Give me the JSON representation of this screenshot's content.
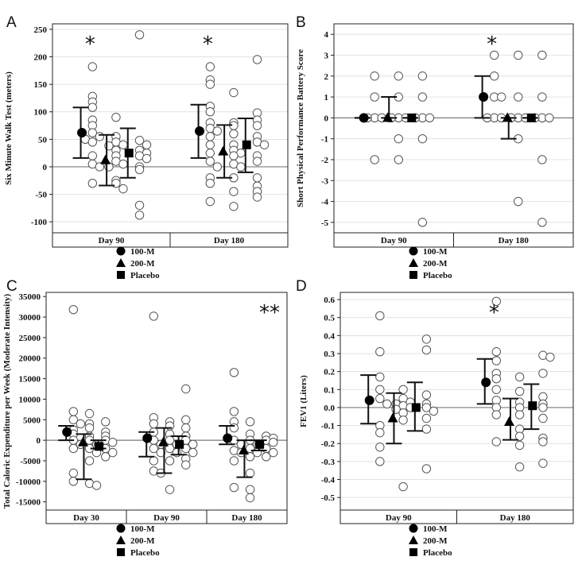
{
  "legend": {
    "entries": [
      {
        "label": "100-M",
        "marker": "circle"
      },
      {
        "label": "200-M",
        "marker": "triangle"
      },
      {
        "label": "Placebo",
        "marker": "square"
      }
    ]
  },
  "chart_data": [
    {
      "panel": "A",
      "type": "scatter",
      "ylabel": "Six Minute Walk Test (meters)",
      "ylim": [
        -120,
        260
      ],
      "yticks": [
        -100,
        -50,
        0,
        50,
        100,
        150,
        200,
        250
      ],
      "categories": [
        "Day 90",
        "Day 180"
      ],
      "grid": true,
      "annotations": [
        {
          "category": "Day 90",
          "text": "*"
        },
        {
          "category": "Day 180",
          "text": "*"
        }
      ],
      "groups": [
        {
          "category": "Day 90",
          "series": [
            {
              "group": "100-M",
              "mean": 62,
              "lower": 16,
              "upper": 108,
              "points": [
                182,
                128,
                118,
                108,
                85,
                75,
                62,
                55,
                50,
                45,
                20,
                5,
                0,
                -30
              ]
            },
            {
              "group": "200-M",
              "mean": 12,
              "lower": -34,
              "upper": 58,
              "points": [
                90,
                55,
                45,
                40,
                38,
                30,
                20,
                10,
                5,
                0,
                -25,
                -30,
                -40
              ]
            },
            {
              "group": "Placebo",
              "mean": 25,
              "lower": -20,
              "upper": 70,
              "points": [
                240,
                48,
                40,
                30,
                25,
                20,
                15,
                0,
                -5,
                -70,
                -88
              ]
            }
          ]
        },
        {
          "category": "Day 180",
          "series": [
            {
              "group": "100-M",
              "mean": 65,
              "lower": 16,
              "upper": 113,
              "points": [
                182,
                158,
                150,
                110,
                100,
                80,
                70,
                65,
                55,
                40,
                25,
                10,
                0,
                -20,
                -30,
                -63
              ]
            },
            {
              "group": "200-M",
              "mean": 28,
              "lower": -20,
              "upper": 76,
              "points": [
                135,
                80,
                75,
                60,
                40,
                30,
                25,
                20,
                5,
                0,
                -20,
                -45,
                -72
              ]
            },
            {
              "group": "Placebo",
              "mean": 40,
              "lower": -10,
              "upper": 88,
              "points": [
                195,
                98,
                85,
                75,
                55,
                45,
                40,
                20,
                10,
                -20,
                -35,
                -45,
                -55
              ]
            }
          ]
        }
      ]
    },
    {
      "panel": "B",
      "type": "scatter",
      "ylabel": "Short Physical Performance Battery Score",
      "ylim": [
        -5.5,
        4.5
      ],
      "yticks": [
        -5,
        -4,
        -3,
        -2,
        -1,
        0,
        1,
        2,
        3,
        4
      ],
      "categories": [
        "Day 90",
        "Day 180"
      ],
      "grid": true,
      "annotations": [
        {
          "category": "Day 180",
          "text": "*"
        }
      ],
      "groups": [
        {
          "category": "Day 90",
          "series": [
            {
              "group": "100-M",
              "mean": 0,
              "lower": 0,
              "upper": 0,
              "points": [
                2,
                1,
                0,
                0,
                0,
                0,
                -2
              ]
            },
            {
              "group": "200-M",
              "mean": 0,
              "lower": 0,
              "upper": 1,
              "points": [
                2,
                1,
                0,
                0,
                0,
                -1,
                -2
              ]
            },
            {
              "group": "Placebo",
              "mean": 0,
              "lower": 0,
              "upper": 0,
              "points": [
                2,
                1,
                0,
                0,
                0,
                -1,
                -5
              ]
            }
          ]
        },
        {
          "category": "Day 180",
          "series": [
            {
              "group": "100-M",
              "mean": 1,
              "lower": 0,
              "upper": 2,
              "points": [
                3,
                2,
                1,
                1,
                0,
                0,
                0
              ]
            },
            {
              "group": "200-M",
              "mean": 0,
              "lower": -1,
              "upper": 0,
              "points": [
                3,
                1,
                0,
                0,
                0,
                -1,
                -4
              ]
            },
            {
              "group": "Placebo",
              "mean": 0,
              "lower": 0,
              "upper": 0,
              "points": [
                3,
                1,
                0,
                0,
                0,
                -2,
                -5
              ]
            }
          ]
        }
      ]
    },
    {
      "panel": "C",
      "type": "scatter",
      "ylabel": "Total Caloric Expenditure per Week (Moderate Intensity)",
      "ylim": [
        -17000,
        36000
      ],
      "yticks": [
        -15000,
        -10000,
        -5000,
        0,
        5000,
        10000,
        15000,
        20000,
        25000,
        30000,
        35000
      ],
      "categories": [
        "Day 30",
        "Day 90",
        "Day 180"
      ],
      "grid": false,
      "annotations": [
        {
          "category": "Day 180",
          "text": "**"
        }
      ],
      "groups": [
        {
          "category": "Day 30",
          "series": [
            {
              "group": "100-M",
              "mean": 2000,
              "lower": 0,
              "upper": 3500,
              "points": [
                31800,
                7000,
                5000,
                4000,
                2500,
                1500,
                0,
                -1000,
                -2000,
                -8000,
                -10000
              ]
            },
            {
              "group": "200-M",
              "mean": -500,
              "lower": -9500,
              "upper": 1500,
              "points": [
                6500,
                4000,
                3000,
                1000,
                0,
                -1000,
                -2000,
                -3000,
                -5000,
                -10500,
                -11000
              ]
            },
            {
              "group": "Placebo",
              "mean": -1500,
              "lower": -2000,
              "upper": 0,
              "points": [
                4500,
                2000,
                1000,
                0,
                -500,
                -1000,
                -2000,
                -3000,
                -4000
              ]
            }
          ]
        },
        {
          "category": "Day 90",
          "series": [
            {
              "group": "100-M",
              "mean": 500,
              "lower": -4000,
              "upper": 2000,
              "points": [
                30200,
                5500,
                4000,
                2000,
                0,
                -1000,
                -2000,
                -3000,
                -5000,
                -7500,
                -8000
              ]
            },
            {
              "group": "200-M",
              "mean": -500,
              "lower": -8000,
              "upper": 3000,
              "points": [
                4500,
                3500,
                1500,
                0,
                -1000,
                -2000,
                -3000,
                -5000,
                -12000
              ]
            },
            {
              "group": "Placebo",
              "mean": -1000,
              "lower": -3500,
              "upper": 1000,
              "points": [
                12500,
                5000,
                3000,
                1000,
                0,
                -1000,
                -2000,
                -3000,
                -4500,
                -6000
              ]
            }
          ]
        },
        {
          "category": "Day 180",
          "series": [
            {
              "group": "100-M",
              "mean": 500,
              "lower": -1000,
              "upper": 3500,
              "points": [
                16500,
                7000,
                4500,
                3000,
                0,
                -1000,
                -2500,
                -3000,
                -5000,
                -11500
              ]
            },
            {
              "group": "200-M",
              "mean": -2500,
              "lower": -9000,
              "upper": 0,
              "points": [
                4500,
                1500,
                0,
                -1000,
                -2000,
                -3000,
                -4000,
                -8000,
                -12000,
                -14000
              ]
            },
            {
              "group": "Placebo",
              "mean": -1000,
              "lower": -2500,
              "upper": 0,
              "points": [
                1000,
                500,
                0,
                -500,
                -1000,
                -2000,
                -3000,
                -4000
              ]
            }
          ]
        }
      ]
    },
    {
      "panel": "D",
      "type": "scatter",
      "ylabel": "FEV1 (Liters)",
      "ylim": [
        -0.57,
        0.64
      ],
      "yticks": [
        -0.5,
        -0.4,
        -0.3,
        -0.2,
        -0.1,
        0.0,
        0.1,
        0.2,
        0.3,
        0.4,
        0.5,
        0.6
      ],
      "ytick_labels": [
        "-0.5",
        "-0.4",
        "-0.3",
        "-0.2",
        "-0.1",
        "0.0",
        "0.1",
        "0.2",
        "0.3",
        "0.4",
        "0.5",
        "0.6"
      ],
      "categories": [
        "Day 90",
        "Day 180"
      ],
      "grid": true,
      "annotations": [
        {
          "category": "Day 180",
          "text": "*"
        }
      ],
      "groups": [
        {
          "category": "Day 90",
          "series": [
            {
              "group": "100-M",
              "mean": 0.04,
              "lower": -0.09,
              "upper": 0.18,
              "points": [
                0.51,
                0.31,
                0.17,
                0.1,
                0.05,
                0.02,
                -0.1,
                -0.14,
                -0.22,
                -0.3
              ]
            },
            {
              "group": "200-M",
              "mean": -0.06,
              "lower": -0.2,
              "upper": 0.08,
              "points": [
                0.1,
                0.05,
                0.03,
                0.02,
                0.01,
                0.0,
                -0.01,
                -0.03,
                -0.07,
                -0.44
              ]
            },
            {
              "group": "Placebo",
              "mean": 0.0,
              "lower": -0.13,
              "upper": 0.14,
              "points": [
                0.38,
                0.32,
                0.07,
                0.02,
                0.0,
                -0.02,
                -0.06,
                -0.12,
                -0.34
              ]
            }
          ]
        },
        {
          "category": "Day 180",
          "series": [
            {
              "group": "100-M",
              "mean": 0.14,
              "lower": 0.02,
              "upper": 0.27,
              "points": [
                0.59,
                0.31,
                0.26,
                0.19,
                0.16,
                0.1,
                0.04,
                0.0,
                -0.04,
                -0.19
              ]
            },
            {
              "group": "200-M",
              "mean": -0.08,
              "lower": -0.18,
              "upper": 0.05,
              "points": [
                0.17,
                0.09,
                0.03,
                0.0,
                -0.04,
                -0.12,
                -0.16,
                -0.21,
                -0.33
              ]
            },
            {
              "group": "Placebo",
              "mean": 0.01,
              "lower": -0.12,
              "upper": 0.13,
              "points": [
                0.29,
                0.28,
                0.19,
                0.06,
                0.02,
                0.0,
                -0.06,
                -0.17,
                -0.19,
                -0.31
              ]
            }
          ]
        }
      ]
    }
  ]
}
